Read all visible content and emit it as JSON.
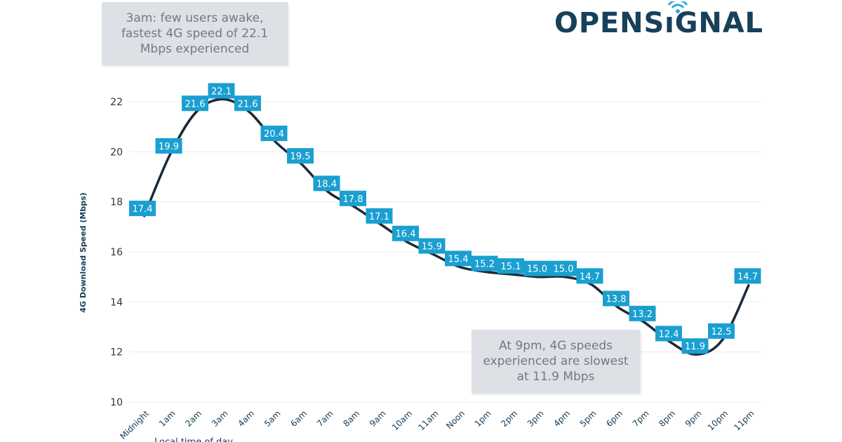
{
  "logo": {
    "text": "OPENSIGNAL",
    "brand_color": "#17405a",
    "accent_color": "#35a8dc"
  },
  "annotations": [
    {
      "text": "3am: few users awake, fastest 4G speed of 22.1 Mbps experienced"
    },
    {
      "text": "At 9pm, 4G speeds experienced are slowest at 11.9 Mbps"
    }
  ],
  "chart_data": {
    "type": "line",
    "title": "",
    "xlabel": "Local time of day",
    "ylabel": "4G Download Speed (Mbps)",
    "ylim": [
      10,
      22
    ],
    "yticks": [
      10,
      12,
      14,
      16,
      18,
      20,
      22
    ],
    "grid": true,
    "categories": [
      "Midnight",
      "1am",
      "2am",
      "3am",
      "4am",
      "5am",
      "6am",
      "7am",
      "8am",
      "9am",
      "10am",
      "11am",
      "Noon",
      "1pm",
      "2pm",
      "3pm",
      "4pm",
      "5pm",
      "6pm",
      "7pm",
      "8pm",
      "9pm",
      "10pm",
      "11pm"
    ],
    "values": [
      17.4,
      19.9,
      21.6,
      22.1,
      21.6,
      20.4,
      19.5,
      18.4,
      17.8,
      17.1,
      16.4,
      15.9,
      15.4,
      15.2,
      15.1,
      15.0,
      15.0,
      14.7,
      13.8,
      13.2,
      12.4,
      11.9,
      12.5,
      14.7
    ],
    "line_color": "#1b2a38",
    "label_color": "#1a9fd0"
  }
}
